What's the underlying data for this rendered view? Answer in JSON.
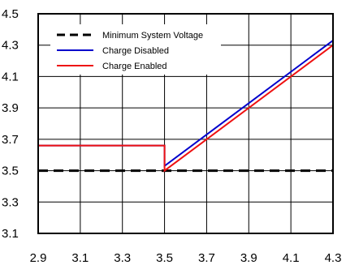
{
  "chart_data": {
    "type": "line",
    "xlim": [
      2.9,
      4.3
    ],
    "ylim": [
      3.1,
      4.5
    ],
    "x_ticks": [
      "2.9",
      "3.1",
      "3.3",
      "3.5",
      "3.7",
      "3.9",
      "4.1",
      "4.3"
    ],
    "y_ticks": [
      "4.5",
      "4.3",
      "4.1",
      "3.9",
      "3.7",
      "3.5",
      "3.3",
      "3.1"
    ],
    "grid": true,
    "legend_position": "top-right",
    "series": [
      {
        "name": "Minimum System Voltage",
        "color": "#000000",
        "style": "dashed",
        "points": [
          [
            2.9,
            3.5
          ],
          [
            4.3,
            3.5
          ]
        ]
      },
      {
        "name": "Charge Disabled",
        "color": "#0000cc",
        "style": "solid",
        "points": [
          [
            2.9,
            3.66
          ],
          [
            3.5,
            3.66
          ],
          [
            3.5,
            3.53
          ],
          [
            4.3,
            4.33
          ]
        ]
      },
      {
        "name": "Charge Enabled",
        "color": "#ee1111",
        "style": "solid",
        "points": [
          [
            2.9,
            3.66
          ],
          [
            3.5,
            3.66
          ],
          [
            3.5,
            3.5
          ],
          [
            4.3,
            4.3
          ]
        ]
      }
    ]
  }
}
